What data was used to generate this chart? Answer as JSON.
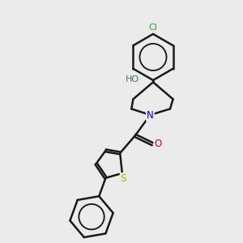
{
  "background_color": "#ebebeb",
  "atom_colors": {
    "C": "#1a1a1a",
    "N": "#0000ee",
    "O": "#ee0000",
    "S": "#bbaa00",
    "Cl": "#22aa22",
    "H": "#407070"
  },
  "bond_color": "#1a1a1a",
  "bond_width": 1.8,
  "dbo": 0.055
}
